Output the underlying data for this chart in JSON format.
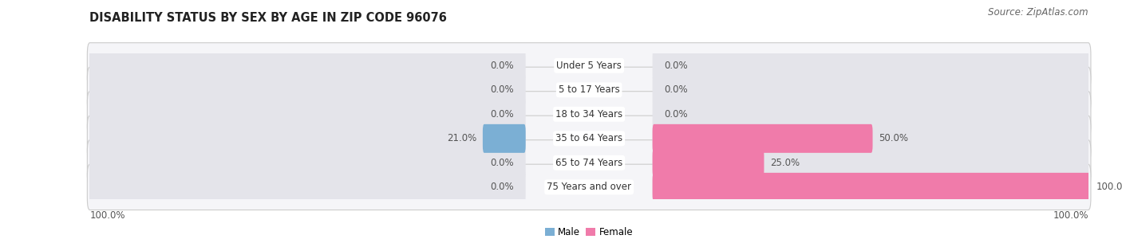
{
  "title": "DISABILITY STATUS BY SEX BY AGE IN ZIP CODE 96076",
  "source": "Source: ZipAtlas.com",
  "categories": [
    "Under 5 Years",
    "5 to 17 Years",
    "18 to 34 Years",
    "35 to 64 Years",
    "65 to 74 Years",
    "75 Years and over"
  ],
  "male_values": [
    0.0,
    0.0,
    0.0,
    21.0,
    0.0,
    0.0
  ],
  "female_values": [
    0.0,
    0.0,
    0.0,
    50.0,
    25.0,
    100.0
  ],
  "male_color": "#7bafd4",
  "female_color": "#f07baa",
  "male_label": "Male",
  "female_label": "Female",
  "bar_bg_color": "#e4e4ea",
  "bar_bg_edge_color": "#d0d0d8",
  "max_val": 100.0,
  "title_fontsize": 10.5,
  "source_fontsize": 8.5,
  "label_fontsize": 8.5,
  "cat_fontsize": 8.5,
  "val_fontsize": 8.5,
  "axis_label_left": "100.0%",
  "axis_label_right": "100.0%",
  "background_color": "#ffffff",
  "row_bg_color": "#efefef"
}
